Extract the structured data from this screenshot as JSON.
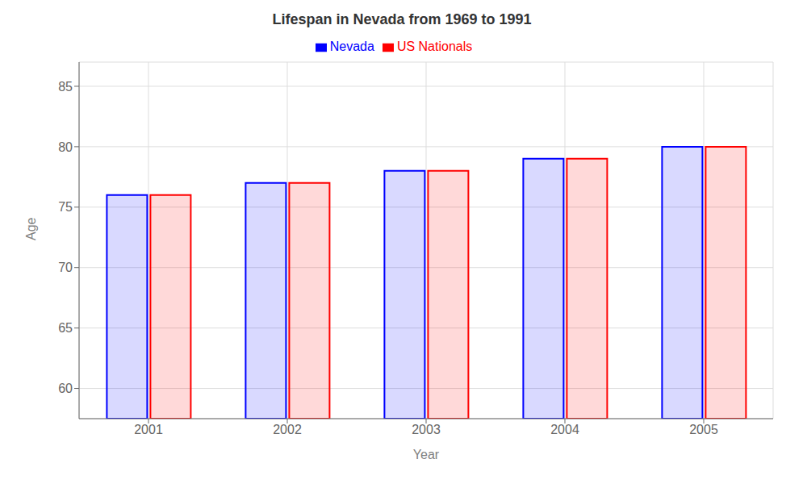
{
  "chart_data": {
    "type": "bar",
    "title": "Lifespan in Nevada from 1969 to 1991",
    "xlabel": "Year",
    "ylabel": "Age",
    "categories": [
      "2001",
      "2002",
      "2003",
      "2004",
      "2005"
    ],
    "series": [
      {
        "name": "Nevada",
        "color": "#0000ff",
        "values": [
          76,
          77,
          78,
          79,
          80
        ]
      },
      {
        "name": "US Nationals",
        "color": "#ff0000",
        "values": [
          76,
          77,
          78,
          79,
          80
        ]
      }
    ],
    "ylim": [
      57.5,
      87
    ],
    "yticks": [
      60,
      65,
      70,
      75,
      80,
      85
    ],
    "grid": true,
    "legend": "top"
  }
}
